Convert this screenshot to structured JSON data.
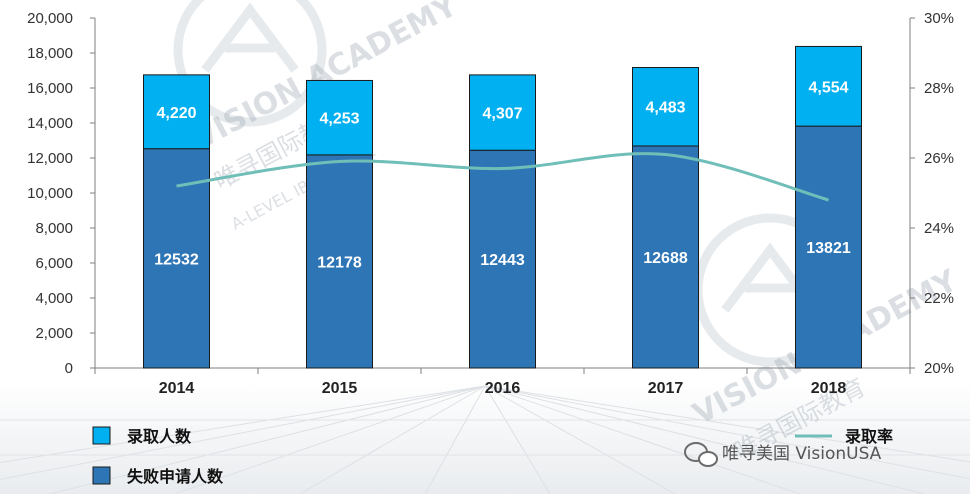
{
  "chart_data": {
    "type": "bar",
    "stacked": true,
    "categories": [
      "2014",
      "2015",
      "2016",
      "2017",
      "2018"
    ],
    "series": [
      {
        "name": "失败申请人数",
        "values": [
          12532,
          12178,
          12443,
          12688,
          13821
        ],
        "labels": [
          "12532",
          "12178",
          "12443",
          "12688",
          "13821"
        ],
        "color": "#2e75b6"
      },
      {
        "name": "录取人数",
        "values": [
          4220,
          4253,
          4307,
          4483,
          4554
        ],
        "labels": [
          "4,220",
          "4,253",
          "4,307",
          "4,483",
          "4,554"
        ],
        "color": "#00b0f0"
      }
    ],
    "line_series": {
      "name": "录取率",
      "axis": "right",
      "color": "#6fbfb8",
      "values": [
        25.2,
        25.9,
        25.7,
        26.1,
        24.8
      ]
    },
    "y_left": {
      "range": [
        0,
        20000
      ],
      "ticks": [
        "0",
        "2,000",
        "4,000",
        "6,000",
        "8,000",
        "10,000",
        "12,000",
        "14,000",
        "16,000",
        "18,000",
        "20,000"
      ]
    },
    "y_right": {
      "range": [
        20,
        30
      ],
      "ticks": [
        "20%",
        "22%",
        "24%",
        "26%",
        "28%",
        "30%"
      ]
    },
    "grid": false,
    "legend_placement": "bottom"
  },
  "watermark": {
    "brand": "VISION ACADEMY",
    "chinese": "唯寻国际教育",
    "courses": "A-LEVEL IB AP GCSE",
    "credit": "唯寻美国 VisionUSA"
  }
}
